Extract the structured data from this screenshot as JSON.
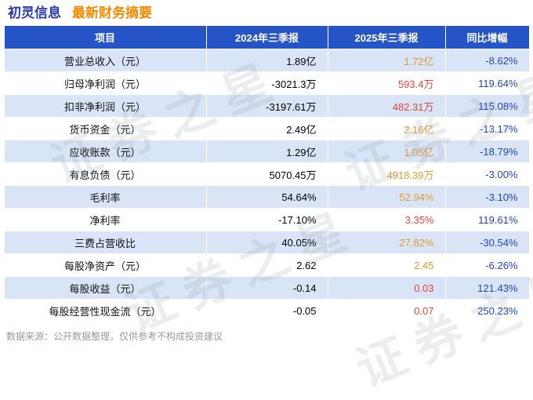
{
  "page": {
    "title_company": "初灵信息",
    "title_subtitle": "最新财务摘要",
    "footer": "数据来源：公开数据整理，仅供参考不构成投资建议",
    "watermark": "证券之星"
  },
  "colors": {
    "header_bg": "#2554C7",
    "row_alt_bg": "#D9E4F6",
    "title_blue": "#2B3DA8",
    "title_orange": "#F28A00",
    "value_orange": "#DF9A33",
    "value_red": "#E0453A",
    "yoy_blue": "#2146BE"
  },
  "chart_data": {
    "type": "table",
    "title": "初灵信息 最新财务摘要",
    "columns": [
      "项目",
      "2024年三季报",
      "2025年三季报",
      "同比增幅"
    ],
    "rows": [
      {
        "item": "营业总收入（元）",
        "y2024": "1.89亿",
        "y2025": "1.72亿",
        "yoy": "-8.62%",
        "y2025_color": "orange"
      },
      {
        "item": "归母净利润（元）",
        "y2024": "-3021.3万",
        "y2025": "593.4万",
        "yoy": "119.64%",
        "y2025_color": "red"
      },
      {
        "item": "扣非净利润（元）",
        "y2024": "-3197.61万",
        "y2025": "482.31万",
        "yoy": "115.08%",
        "y2025_color": "red"
      },
      {
        "item": "货币资金（元）",
        "y2024": "2.49亿",
        "y2025": "2.16亿",
        "yoy": "-13.17%",
        "y2025_color": "orange"
      },
      {
        "item": "应收账款（元）",
        "y2024": "1.29亿",
        "y2025": "1.05亿",
        "yoy": "-18.79%",
        "y2025_color": "orange"
      },
      {
        "item": "有息负债（元）",
        "y2024": "5070.45万",
        "y2025": "4918.39万",
        "yoy": "-3.00%",
        "y2025_color": "orange"
      },
      {
        "item": "毛利率",
        "y2024": "54.64%",
        "y2025": "52.94%",
        "yoy": "-3.10%",
        "y2025_color": "orange"
      },
      {
        "item": "净利率",
        "y2024": "-17.10%",
        "y2025": "3.35%",
        "yoy": "119.61%",
        "y2025_color": "red"
      },
      {
        "item": "三费占营收比",
        "y2024": "40.05%",
        "y2025": "27.82%",
        "yoy": "-30.54%",
        "y2025_color": "orange"
      },
      {
        "item": "每股净资产（元）",
        "y2024": "2.62",
        "y2025": "2.45",
        "yoy": "-6.26%",
        "y2025_color": "orange"
      },
      {
        "item": "每股收益（元）",
        "y2024": "-0.14",
        "y2025": "0.03",
        "yoy": "121.43%",
        "y2025_color": "red"
      },
      {
        "item": "每股经营性现金流（元）",
        "y2024": "-0.05",
        "y2025": "0.07",
        "yoy": "250.23%",
        "y2025_color": "red"
      }
    ]
  }
}
